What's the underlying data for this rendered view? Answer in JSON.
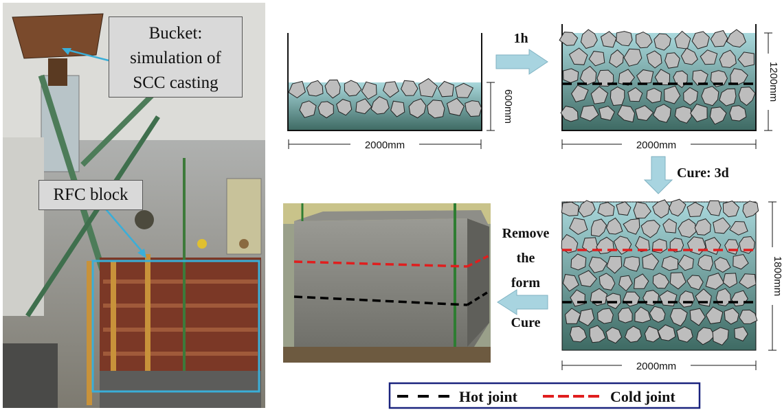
{
  "left_photo": {
    "bucket_label": "Bucket:",
    "bucket_label_l2": "simulation of",
    "bucket_label_l3": "SCC casting",
    "block_label": "RFC block"
  },
  "diagram": {
    "stage1": {
      "height_label": "600mm",
      "width_label": "2000mm"
    },
    "step1_label": "1h",
    "stage2": {
      "height_label": "1200mm",
      "width_label": "2000mm"
    },
    "step2_label": "Cure: 3d",
    "stage3": {
      "height_label": "1800mm",
      "width_label": "2000mm"
    },
    "step3_label_l1": "Remove",
    "step3_label_l2": "the",
    "step3_label_l3": "form",
    "step3_label_l4": "Cure"
  },
  "legend": {
    "hot_joint": "Hot joint",
    "cold_joint": "Cold joint"
  },
  "colors": {
    "arrow": "#a8d4e0",
    "concrete_fill": "#3f6b64",
    "hot_joint": "#000000",
    "cold_joint": "#e01e1e",
    "legend_border": "#1a237e"
  }
}
